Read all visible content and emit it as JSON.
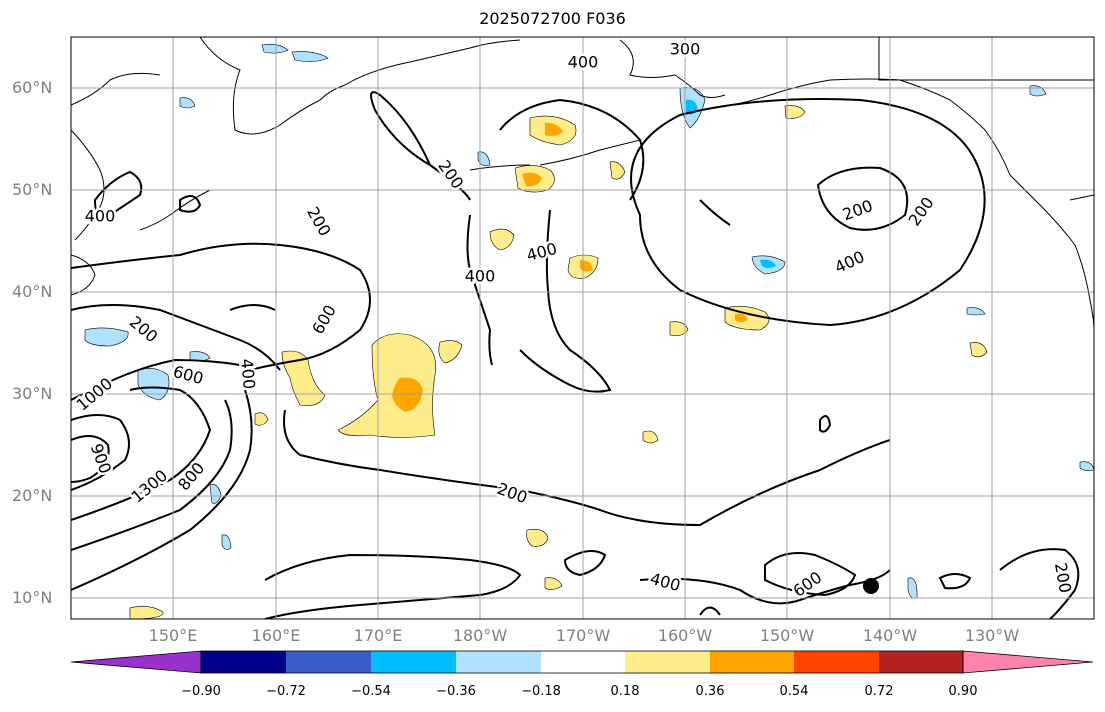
{
  "title": "2025072700 F036",
  "lat_labels": [
    "60°N",
    "50°N",
    "40°N",
    "30°N",
    "20°N",
    "10°N"
  ],
  "lon_labels": [
    "150°E",
    "160°E",
    "170°E",
    "180°W",
    "170°W",
    "160°W",
    "150°W",
    "140°W",
    "130°W"
  ],
  "contour_labels": [
    "300",
    "400",
    "400",
    "200",
    "200",
    "400",
    "400",
    "200",
    "200",
    "400",
    "200",
    "600",
    "600",
    "400",
    "1000",
    "900",
    "1300",
    "800",
    "200",
    "400",
    "600",
    "200"
  ],
  "colorbar": {
    "tick_labels": [
      "−0.90",
      "−0.72",
      "−0.54",
      "−0.36",
      "−0.18",
      "0.18",
      "0.36",
      "0.54",
      "0.72",
      "0.90"
    ],
    "colors": [
      "#9932cc",
      "#00008b",
      "#3a5fcd",
      "#00bfff",
      "#b0e2ff",
      "#ffffff",
      "#ffec8b",
      "#ffa500",
      "#ff4500",
      "#b22222",
      "#ff82ab"
    ]
  },
  "colors": {
    "contour": "#000000",
    "coast": "#000000",
    "grid": "#a0a0a0",
    "shade_light_yellow": "#ffec8b",
    "shade_orange": "#ffa500",
    "shade_light_blue": "#b0e2ff",
    "shade_blue": "#00bfff"
  },
  "marker": "storm-center-dot"
}
